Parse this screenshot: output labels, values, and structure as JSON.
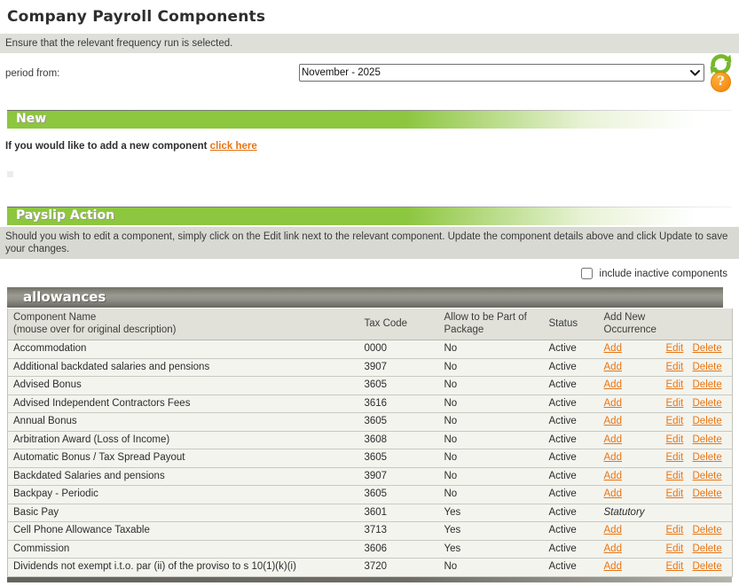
{
  "title": "Company Payroll Components",
  "notice": "Ensure that the relevant frequency run is selected.",
  "period": {
    "label": "period from:",
    "value": "November - 2025"
  },
  "icons": {
    "refresh": "refresh-icon",
    "help_glyph": "?"
  },
  "new_section": {
    "title": "New",
    "prompt": "If you would like to add a new component",
    "link_label": "click here"
  },
  "payslip_section": {
    "title": "Payslip Action",
    "instructions": "Should you wish to edit a component, simply click on the Edit link next to the relevant component. Update the component details above and click Update to save your changes."
  },
  "filter": {
    "label": "include inactive components",
    "checked": false
  },
  "allowances_table": {
    "category": "allowances",
    "columns": {
      "component": "Component Name",
      "component_sub": "(mouse over for original description)",
      "tax_code": "Tax Code",
      "package": "Allow to be Part of Package",
      "status": "Status",
      "occurrence": "Add New Occurrence"
    },
    "rows": [
      {
        "name": "Accommodation",
        "tax_code": "0000",
        "package": "No",
        "status": "Active",
        "occurrence": "Add",
        "occurrence_is_link": true,
        "edit": "Edit",
        "delete": "Delete"
      },
      {
        "name": "Additional backdated salaries and pensions",
        "tax_code": "3907",
        "package": "No",
        "status": "Active",
        "occurrence": "Add",
        "occurrence_is_link": true,
        "edit": "Edit",
        "delete": "Delete"
      },
      {
        "name": "Advised Bonus",
        "tax_code": "3605",
        "package": "No",
        "status": "Active",
        "occurrence": "Add",
        "occurrence_is_link": true,
        "edit": "Edit",
        "delete": "Delete"
      },
      {
        "name": "Advised Independent Contractors Fees",
        "tax_code": "3616",
        "package": "No",
        "status": "Active",
        "occurrence": "Add",
        "occurrence_is_link": true,
        "edit": "Edit",
        "delete": "Delete"
      },
      {
        "name": "Annual Bonus",
        "tax_code": "3605",
        "package": "No",
        "status": "Active",
        "occurrence": "Add",
        "occurrence_is_link": true,
        "edit": "Edit",
        "delete": "Delete"
      },
      {
        "name": "Arbitration Award (Loss of Income)",
        "tax_code": "3608",
        "package": "No",
        "status": "Active",
        "occurrence": "Add",
        "occurrence_is_link": true,
        "edit": "Edit",
        "delete": "Delete"
      },
      {
        "name": "Automatic Bonus / Tax Spread Payout",
        "tax_code": "3605",
        "package": "No",
        "status": "Active",
        "occurrence": "Add",
        "occurrence_is_link": true,
        "edit": "Edit",
        "delete": "Delete"
      },
      {
        "name": "Backdated Salaries and pensions",
        "tax_code": "3907",
        "package": "No",
        "status": "Active",
        "occurrence": "Add",
        "occurrence_is_link": true,
        "edit": "Edit",
        "delete": "Delete"
      },
      {
        "name": "Backpay - Periodic",
        "tax_code": "3605",
        "package": "No",
        "status": "Active",
        "occurrence": "Add",
        "occurrence_is_link": true,
        "edit": "Edit",
        "delete": "Delete"
      },
      {
        "name": "Basic Pay",
        "tax_code": "3601",
        "package": "Yes",
        "status": "Active",
        "occurrence": "Statutory",
        "occurrence_is_link": false,
        "edit": "",
        "delete": ""
      },
      {
        "name": "Cell Phone Allowance Taxable",
        "tax_code": "3713",
        "package": "Yes",
        "status": "Active",
        "occurrence": "Add",
        "occurrence_is_link": true,
        "edit": "Edit",
        "delete": "Delete"
      },
      {
        "name": "Commission",
        "tax_code": "3606",
        "package": "Yes",
        "status": "Active",
        "occurrence": "Add",
        "occurrence_is_link": true,
        "edit": "Edit",
        "delete": "Delete"
      },
      {
        "name": "Dividends not exempt i.t.o. par (ii) of the proviso to s 10(1)(k)(i)",
        "tax_code": "3720",
        "package": "No",
        "status": "Active",
        "occurrence": "Add",
        "occurrence_is_link": true,
        "edit": "Edit",
        "delete": "Delete"
      }
    ]
  },
  "colors": {
    "accent_green": "#8dc63f",
    "link_orange": "#e87513",
    "category_bar_gray": "#8b8b84",
    "notice_gray": "#dedfd9",
    "help_orange": "#f7941e",
    "refresh_green": "#76b82a"
  }
}
